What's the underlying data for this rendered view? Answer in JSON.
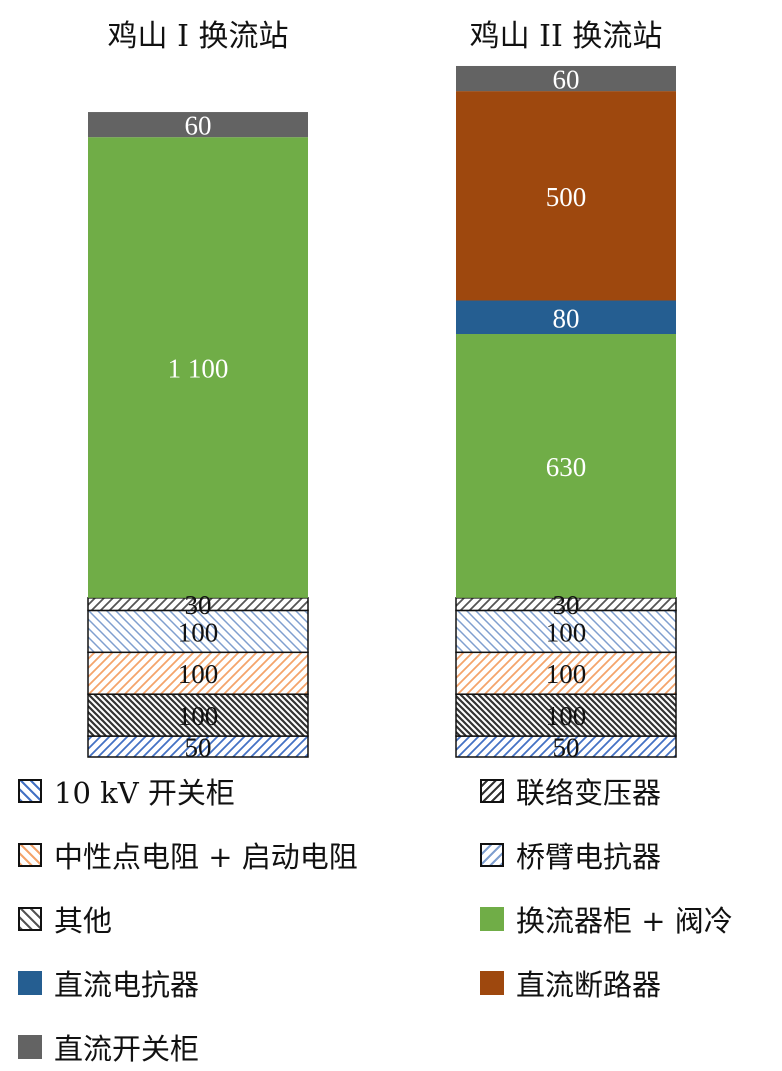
{
  "chart_data": {
    "type": "bar",
    "stacked": true,
    "categories": [
      "鸡山 I 换流站",
      "鸡山 II 换流站"
    ],
    "series": [
      {
        "name": "10 kV 开关柜",
        "values": [
          50,
          50
        ],
        "labels": [
          "50",
          "50"
        ],
        "color": "#4472c4",
        "pattern": "hatch-forward"
      },
      {
        "name": "联络变压器",
        "values": [
          100,
          100
        ],
        "labels": [
          "100",
          "100"
        ],
        "color": "#333333",
        "pattern": "hatch-back-dense"
      },
      {
        "name": "中性点电阻 + 启动电阻",
        "values": [
          100,
          100
        ],
        "labels": [
          "100",
          "100"
        ],
        "color": "#f4a46b",
        "pattern": "hatch-forward"
      },
      {
        "name": "桥臂电抗器",
        "values": [
          100,
          100
        ],
        "labels": [
          "100",
          "100"
        ],
        "color": "#7f9fcf",
        "pattern": "hatch-back"
      },
      {
        "name": "其他",
        "values": [
          30,
          30
        ],
        "labels": [
          "30",
          "30"
        ],
        "color": "#555555",
        "pattern": "hatch-forward"
      },
      {
        "name": "换流器柜 + 阀冷",
        "values": [
          1100,
          630
        ],
        "labels": [
          "1 100",
          "630"
        ],
        "color": "#70ad47",
        "pattern": "solid"
      },
      {
        "name": "直流电抗器",
        "values": [
          0,
          80
        ],
        "labels": [
          "",
          "80"
        ],
        "color": "#255e91",
        "pattern": "solid"
      },
      {
        "name": "直流断路器",
        "values": [
          0,
          500
        ],
        "labels": [
          "",
          "500"
        ],
        "color": "#9e480e",
        "pattern": "solid"
      },
      {
        "name": "直流开关柜",
        "values": [
          60,
          60
        ],
        "labels": [
          "60",
          "60"
        ],
        "color": "#636363",
        "pattern": "solid"
      }
    ],
    "legend_position": "bottom",
    "legend_layout": {
      "left": [
        "10 kV 开关柜",
        "中性点电阻 + 启动电阻",
        "其他",
        "直流电抗器",
        "直流开关柜"
      ],
      "right": [
        "联络变压器",
        "桥臂电抗器",
        "换流器柜 + 阀冷",
        "直流断路器"
      ]
    },
    "grid": false,
    "axes_visible": false
  }
}
